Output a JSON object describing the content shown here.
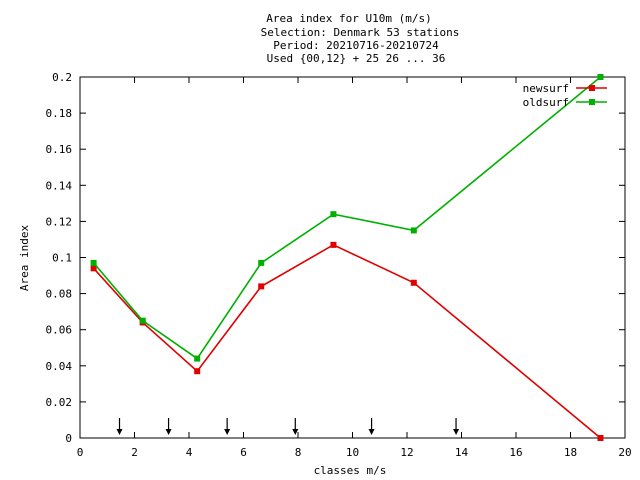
{
  "chart_data": {
    "type": "line",
    "title_lines": [
      "Area index  for U10m (m/s)",
      "Selection: Denmark     53 stations",
      "Period: 20210716-20210724",
      "Used {00,12} + 25 26 ... 36"
    ],
    "xlabel": "classes m/s",
    "ylabel": "Area index",
    "xlim": [
      0,
      20
    ],
    "ylim": [
      0,
      0.2
    ],
    "x_ticks": [
      0,
      2,
      4,
      6,
      8,
      10,
      12,
      14,
      16,
      18,
      20
    ],
    "y_ticks": [
      0,
      0.02,
      0.04,
      0.06,
      0.08,
      0.1,
      0.12,
      0.14,
      0.16,
      0.18,
      0.2
    ],
    "y_tick_labels": [
      "0",
      "0.02",
      "0.04",
      "0.06",
      "0.08",
      "0.1",
      "0.12",
      "0.14",
      "0.16",
      "0.18",
      "0.2"
    ],
    "x_tick_labels": [
      "0",
      "2",
      "4",
      "6",
      "8",
      "10",
      "12",
      "14",
      "16",
      "18",
      "20"
    ],
    "grid": false,
    "legend_position": "top-right",
    "class_boundary_arrows_x": [
      1.45,
      3.25,
      5.4,
      7.9,
      10.7,
      13.8
    ],
    "series": [
      {
        "name": "newsurf",
        "color": "#e00000",
        "x": [
          0.5,
          2.3,
          4.3,
          6.65,
          9.3,
          12.25,
          19.1
        ],
        "y": [
          0.094,
          0.064,
          0.037,
          0.084,
          0.107,
          0.086,
          0.0
        ]
      },
      {
        "name": "oldsurf",
        "color": "#00b000",
        "x": [
          0.5,
          2.3,
          4.3,
          6.65,
          9.3,
          12.25,
          19.1
        ],
        "y": [
          0.097,
          0.065,
          0.044,
          0.097,
          0.124,
          0.115,
          0.2
        ]
      }
    ]
  }
}
